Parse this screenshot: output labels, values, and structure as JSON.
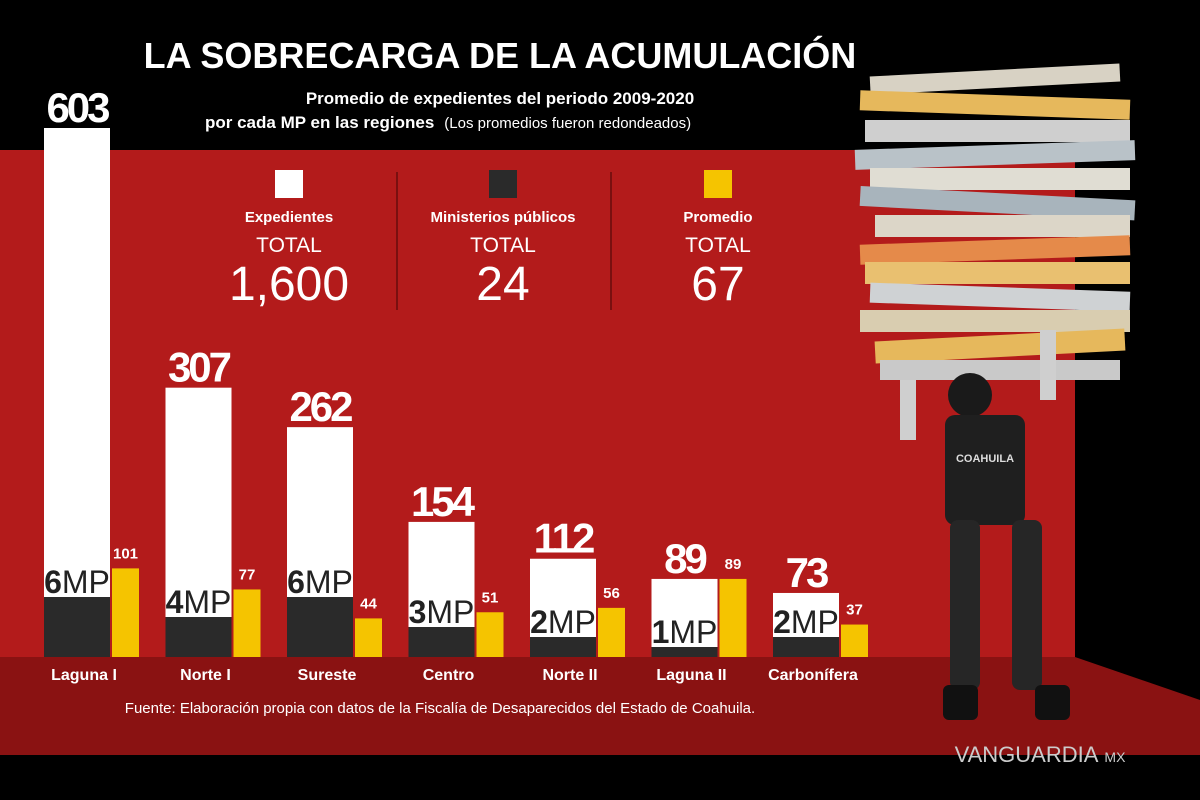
{
  "chart_data": {
    "type": "bar",
    "title": "LA SOBRECARGA DE LA ACUMULACIÓN",
    "subtitle": [
      "Promedio de expedientes del periodo 2009-2020",
      "por cada MP en las regiones"
    ],
    "note": "(Los promedios fueron redondeados)",
    "total_caption": "TOTAL",
    "categories": [
      "Laguna I",
      "Norte I",
      "Sureste",
      "Centro",
      "Norte II",
      "Laguna II",
      "Carbonífera"
    ],
    "series": [
      {
        "name": "Expedientes",
        "color": "#ffffff",
        "values": [
          603,
          307,
          262,
          154,
          112,
          89,
          73
        ],
        "total": {
          "value": 1600,
          "label": "1,600"
        }
      },
      {
        "name": "Ministerios públicos",
        "color": "#2a2a2a",
        "unit": "MP",
        "values": [
          6,
          4,
          6,
          3,
          2,
          1,
          2
        ],
        "total": 24
      },
      {
        "name": "Promedio",
        "color": "#f5c400",
        "values": [
          101,
          77,
          44,
          51,
          56,
          89,
          37
        ],
        "total": 67
      }
    ],
    "source": "Fuente: Elaboración propia con datos de la Fiscalía de Desaparecidos del Estado de Coahuila.",
    "brand": "VANGUARDIA",
    "brand_suffix": "MX"
  }
}
